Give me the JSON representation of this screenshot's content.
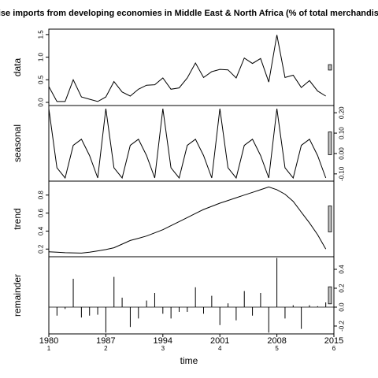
{
  "chart_data": {
    "type": "line",
    "title": "Merchandise imports from developing economies in Middle East & North Africa (% of total merchandise imports)",
    "xlabel": "time",
    "x_ticks": [
      {
        "value": 1980,
        "label": "1980",
        "sub": "1"
      },
      {
        "value": 1987,
        "label": "1987",
        "sub": "2"
      },
      {
        "value": 1994,
        "label": "1994",
        "sub": "3"
      },
      {
        "value": 2001,
        "label": "2001",
        "sub": "4"
      },
      {
        "value": 2008,
        "label": "2008",
        "sub": "5"
      },
      {
        "value": 2015,
        "label": "2015",
        "sub": "6"
      }
    ],
    "xlim": [
      1980,
      2015
    ],
    "panels": [
      {
        "name": "data",
        "ylabel": "data",
        "type": "line",
        "ylim": [
          0,
          1.55
        ],
        "yticks": [
          "0.0",
          "0.5",
          "1.0",
          "1.5"
        ],
        "ytick_values": [
          0,
          0.5,
          1.0,
          1.5
        ],
        "tick_side": "left",
        "x": [
          1980,
          1981,
          1982,
          1983,
          1984,
          1985,
          1986,
          1987,
          1988,
          1989,
          1990,
          1991,
          1992,
          1993,
          1994,
          1995,
          1996,
          1997,
          1998,
          1999,
          2000,
          2001,
          2002,
          2003,
          2004,
          2005,
          2006,
          2007,
          2008,
          2009,
          2010,
          2011,
          2012,
          2013,
          2014
        ],
        "values": [
          0.35,
          0.02,
          0.02,
          0.5,
          0.12,
          0.07,
          0.02,
          0.12,
          0.46,
          0.23,
          0.14,
          0.29,
          0.38,
          0.39,
          0.54,
          0.29,
          0.32,
          0.54,
          0.87,
          0.55,
          0.68,
          0.73,
          0.72,
          0.54,
          0.98,
          0.86,
          0.97,
          0.45,
          1.49,
          0.55,
          0.6,
          0.33,
          0.48,
          0.25,
          0.14
        ],
        "scale_bar": 0.4
      },
      {
        "name": "seasonal",
        "ylabel": "seasonal",
        "type": "line",
        "ylim": [
          -0.12,
          0.22
        ],
        "yticks": [
          "-0.10",
          "0.00",
          "0.10",
          "0.20"
        ],
        "ytick_values": [
          -0.1,
          0.0,
          0.1,
          0.2
        ],
        "tick_side": "right",
        "x": [
          1980,
          1981,
          1982,
          1983,
          1984,
          1985,
          1986,
          1987,
          1988,
          1989,
          1990,
          1991,
          1992,
          1993,
          1994,
          1995,
          1996,
          1997,
          1998,
          1999,
          2000,
          2001,
          2002,
          2003,
          2004,
          2005,
          2006,
          2007,
          2008,
          2009,
          2010,
          2011,
          2012,
          2013,
          2014
        ],
        "values": [
          0.22,
          -0.07,
          -0.12,
          0.04,
          0.07,
          -0.01,
          -0.12,
          0.22,
          -0.07,
          -0.12,
          0.04,
          0.07,
          -0.01,
          -0.12,
          0.22,
          -0.07,
          -0.12,
          0.04,
          0.07,
          -0.01,
          -0.12,
          0.22,
          -0.07,
          -0.12,
          0.04,
          0.07,
          -0.01,
          -0.12,
          0.22,
          -0.07,
          -0.12,
          0.04,
          0.07,
          -0.01,
          -0.12
        ],
        "scale_bar": 0.4
      },
      {
        "name": "trend",
        "ylabel": "trend",
        "type": "line",
        "ylim": [
          0.15,
          0.92
        ],
        "yticks": [
          "0.2",
          "0.4",
          "0.6",
          "0.8"
        ],
        "ytick_values": [
          0.2,
          0.4,
          0.6,
          0.8
        ],
        "tick_side": "left",
        "x": [
          1980,
          1981,
          1982,
          1983,
          1984,
          1985,
          1986,
          1987,
          1988,
          1989,
          1990,
          1991,
          1992,
          1993,
          1994,
          1995,
          1996,
          1997,
          1998,
          1999,
          2000,
          2001,
          2002,
          2003,
          2004,
          2005,
          2006,
          2007,
          2008,
          2009,
          2010,
          2011,
          2012,
          2013,
          2014
        ],
        "values": [
          0.17,
          0.165,
          0.16,
          0.158,
          0.155,
          0.165,
          0.18,
          0.195,
          0.215,
          0.255,
          0.295,
          0.32,
          0.345,
          0.38,
          0.415,
          0.46,
          0.505,
          0.55,
          0.595,
          0.64,
          0.675,
          0.71,
          0.74,
          0.77,
          0.8,
          0.83,
          0.86,
          0.89,
          0.86,
          0.81,
          0.73,
          0.61,
          0.49,
          0.36,
          0.2
        ],
        "scale_bar": 0.4
      },
      {
        "name": "remainder",
        "ylabel": "remainder",
        "type": "bar",
        "ylim": [
          -0.25,
          0.5
        ],
        "yticks": [
          "-0.2",
          "0.0",
          "0.2",
          "0.4"
        ],
        "ytick_values": [
          -0.2,
          0.0,
          0.2,
          0.4
        ],
        "tick_side": "right",
        "x": [
          1980,
          1981,
          1982,
          1983,
          1984,
          1985,
          1986,
          1987,
          1988,
          1989,
          1990,
          1991,
          1992,
          1993,
          1994,
          1995,
          1996,
          1997,
          1998,
          1999,
          2000,
          2001,
          2002,
          2003,
          2004,
          2005,
          2006,
          2007,
          2008,
          2009,
          2010,
          2011,
          2012,
          2013,
          2014
        ],
        "values": [
          -0.22,
          -0.09,
          -0.02,
          0.3,
          -0.11,
          -0.09,
          -0.08,
          -0.27,
          0.32,
          0.1,
          -0.21,
          -0.12,
          0.07,
          0.15,
          -0.07,
          -0.12,
          -0.05,
          -0.05,
          0.21,
          -0.07,
          0.12,
          -0.19,
          0.04,
          -0.14,
          0.17,
          -0.09,
          0.15,
          -0.27,
          0.52,
          -0.12,
          0.02,
          -0.23,
          0.02,
          0.01,
          0.05
        ],
        "scale_bar": 0.4
      }
    ]
  }
}
